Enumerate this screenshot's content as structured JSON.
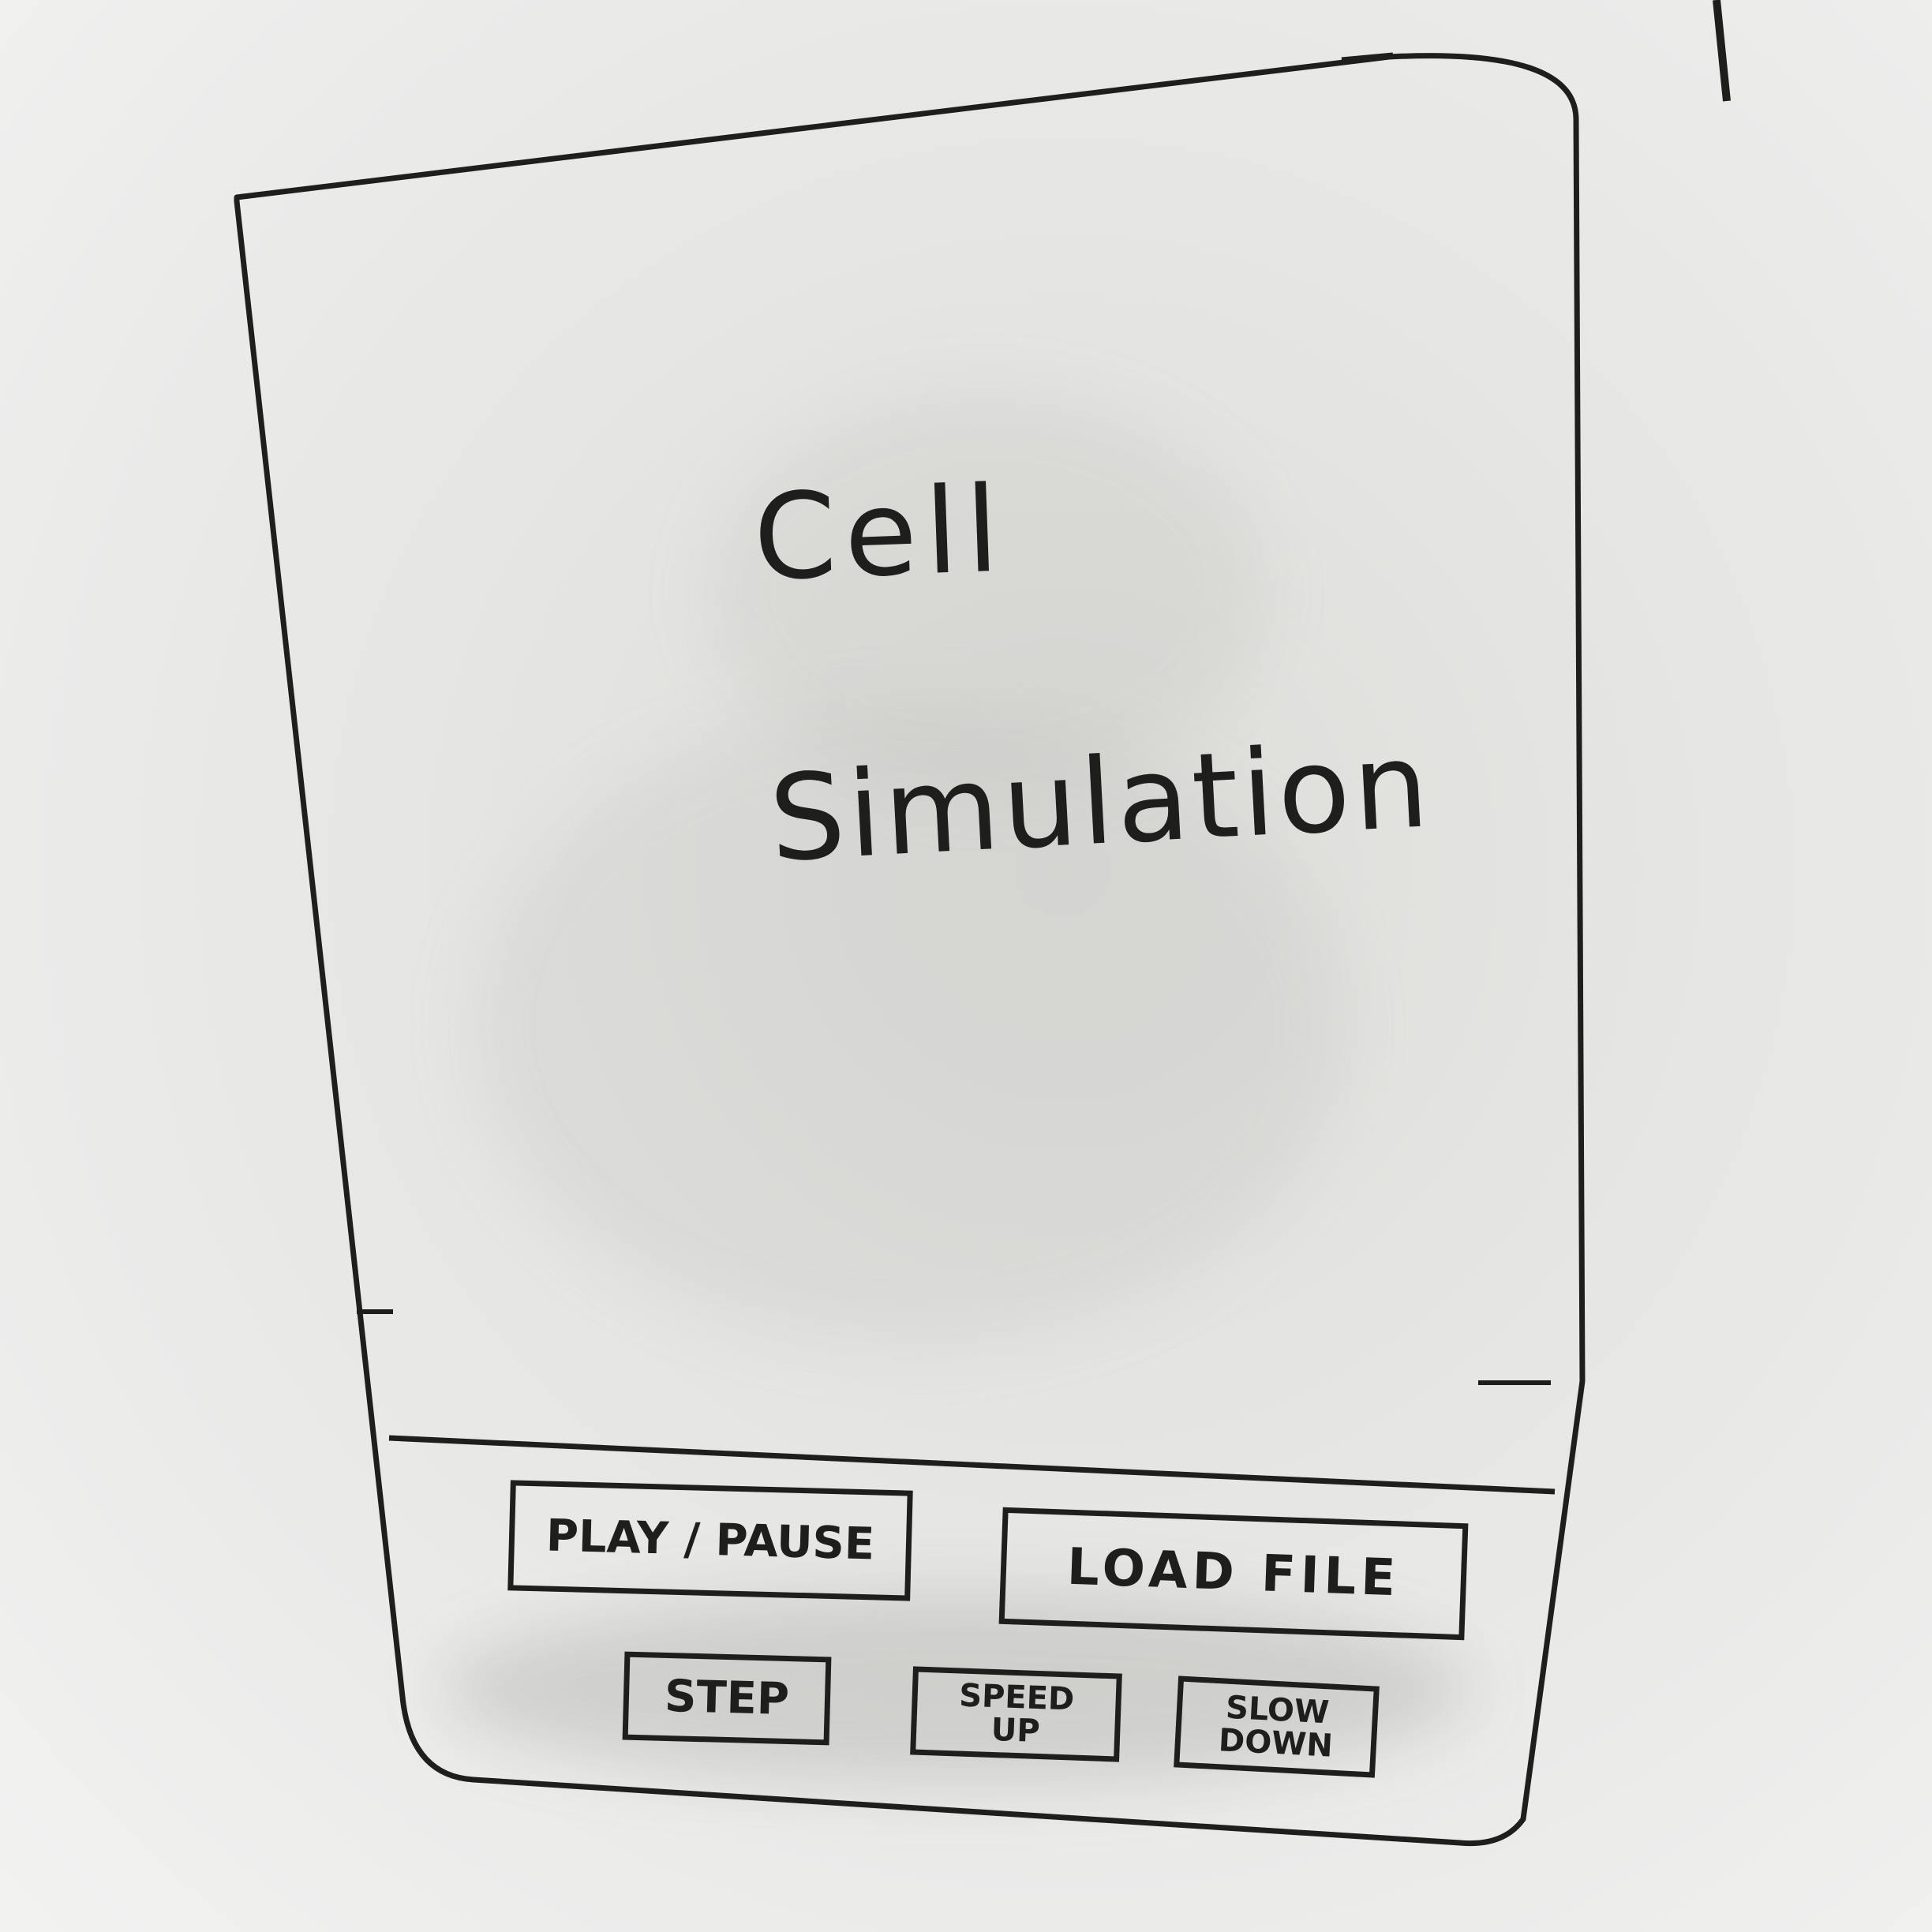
{
  "app": {
    "title_line1": "Cell",
    "title_line2": "Simulation"
  },
  "controls": {
    "play_pause_label": "PLAY / PAUSE",
    "load_file_label": "LOAD FILE",
    "step_label": "STEP",
    "speed_up_label_line1": "SPEED",
    "speed_up_label_line2": "UP",
    "slow_down_label_line1": "SLOW",
    "slow_down_label_line2": "DOWN"
  },
  "colors": {
    "ink": "#1e1e1c",
    "whiteboard": "#e8e8e6"
  }
}
